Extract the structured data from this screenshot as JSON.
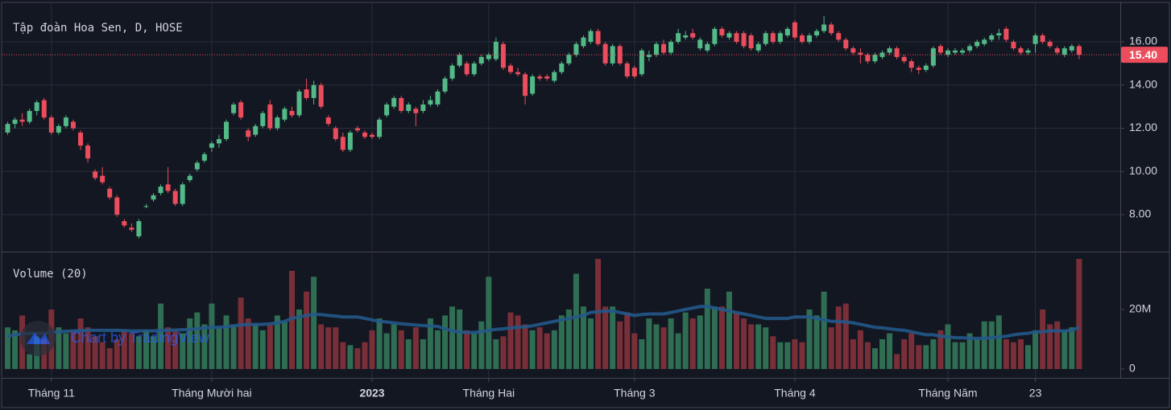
{
  "chart_data": {
    "type": "candlestick",
    "title": "Tập đoàn Hoa Sen, D, HOSE",
    "volume_title": "Volume (20)",
    "watermark": "Chart by TradingView",
    "up_color": "#53b987",
    "down_color": "#eb4d5c",
    "volume_up_color": "#2f6e52",
    "volume_down_color": "#7a2f38",
    "ma_color": "#24588a",
    "ylim": [
      6.29,
      17.75
    ],
    "yticks": [
      {
        "value": 8,
        "label": "8.00"
      },
      {
        "value": 10,
        "label": "10.00"
      },
      {
        "value": 12,
        "label": "12.00"
      },
      {
        "value": 14,
        "label": "14.00"
      },
      {
        "value": 16,
        "label": "16.00"
      }
    ],
    "last_price": {
      "value": 15.4,
      "label": "15.40"
    },
    "y2lim": [
      0,
      38.9
    ],
    "y2ticks": [
      0,
      {
        "value": 20,
        "label": "20M"
      }
    ],
    "grid": true,
    "categories": [
      null,
      null,
      null,
      null,
      null,
      null,
      "Tháng 11",
      null,
      null,
      null,
      null,
      null,
      null,
      null,
      null,
      null,
      null,
      null,
      null,
      null,
      null,
      null,
      null,
      null,
      null,
      null,
      null,
      null,
      "Tháng Mười hai",
      null,
      null,
      null,
      null,
      null,
      null,
      null,
      null,
      null,
      null,
      null,
      null,
      null,
      null,
      null,
      null,
      null,
      null,
      null,
      null,
      null,
      "2023",
      null,
      null,
      null,
      null,
      null,
      null,
      null,
      null,
      null,
      null,
      null,
      null,
      null,
      null,
      null,
      "Tháng Hai",
      null,
      null,
      null,
      null,
      null,
      null,
      null,
      null,
      null,
      null,
      null,
      null,
      null,
      null,
      null,
      null,
      null,
      null,
      null,
      "Tháng 3",
      null,
      null,
      null,
      null,
      null,
      null,
      null,
      null,
      null,
      null,
      null,
      null,
      null,
      null,
      null,
      null,
      null,
      null,
      null,
      null,
      null,
      "Tháng 4",
      null,
      null,
      null,
      null,
      null,
      null,
      null,
      null,
      null,
      null,
      null,
      null,
      null,
      null,
      null,
      null,
      null,
      null,
      null,
      null,
      "Tháng Năm",
      null,
      null,
      null,
      null,
      null,
      null,
      null,
      null,
      null,
      null,
      null,
      "23",
      null,
      null,
      null,
      null,
      null,
      null
    ],
    "ohlc": [
      [
        11.8,
        12.3,
        11.7,
        12.2
      ],
      [
        12.2,
        12.5,
        12.0,
        12.4
      ],
      [
        12.4,
        12.7,
        12.1,
        12.3
      ],
      [
        12.3,
        12.9,
        12.2,
        12.8
      ],
      [
        12.8,
        13.3,
        12.6,
        13.2
      ],
      [
        13.3,
        13.4,
        12.4,
        12.5
      ],
      [
        12.5,
        12.6,
        11.7,
        11.8
      ],
      [
        11.8,
        12.2,
        11.7,
        12.1
      ],
      [
        12.1,
        12.6,
        12.0,
        12.5
      ],
      [
        12.3,
        12.4,
        11.9,
        12.0
      ],
      [
        11.8,
        11.9,
        11.0,
        11.2
      ],
      [
        11.2,
        11.3,
        10.4,
        10.6
      ],
      [
        10.0,
        10.1,
        9.6,
        9.7
      ],
      [
        9.8,
        10.2,
        9.4,
        9.5
      ],
      [
        9.2,
        9.3,
        8.7,
        8.8
      ],
      [
        8.8,
        8.9,
        7.9,
        8.0
      ],
      [
        7.7,
        7.8,
        7.4,
        7.5
      ],
      [
        7.4,
        7.6,
        7.2,
        7.3
      ],
      [
        7.0,
        7.8,
        6.9,
        7.7
      ],
      [
        8.4,
        8.5,
        8.3,
        8.4
      ],
      [
        8.7,
        9.0,
        8.6,
        8.9
      ],
      [
        9.0,
        9.4,
        8.9,
        9.3
      ],
      [
        9.4,
        10.2,
        9.0,
        9.1
      ],
      [
        9.1,
        9.2,
        8.4,
        8.5
      ],
      [
        8.5,
        9.5,
        8.4,
        9.4
      ],
      [
        9.6,
        9.9,
        9.5,
        9.8
      ],
      [
        10.1,
        10.5,
        10.0,
        10.4
      ],
      [
        10.5,
        10.9,
        10.4,
        10.8
      ],
      [
        11.1,
        11.4,
        10.9,
        11.3
      ],
      [
        11.3,
        11.7,
        11.1,
        11.5
      ],
      [
        11.5,
        12.4,
        11.4,
        12.3
      ],
      [
        12.7,
        13.2,
        12.6,
        13.1
      ],
      [
        13.2,
        13.3,
        12.4,
        12.5
      ],
      [
        11.9,
        12.0,
        11.4,
        11.6
      ],
      [
        11.7,
        12.2,
        11.6,
        12.1
      ],
      [
        12.1,
        12.8,
        12.0,
        12.7
      ],
      [
        13.1,
        13.3,
        11.9,
        12.0
      ],
      [
        12.0,
        12.6,
        11.9,
        12.5
      ],
      [
        12.4,
        13.0,
        12.3,
        12.9
      ],
      [
        12.8,
        13.0,
        12.5,
        12.6
      ],
      [
        12.6,
        13.8,
        12.5,
        13.7
      ],
      [
        13.8,
        14.3,
        13.3,
        13.4
      ],
      [
        13.4,
        14.2,
        13.1,
        14.0
      ],
      [
        14.0,
        14.1,
        12.9,
        13.0
      ],
      [
        12.5,
        12.6,
        12.1,
        12.2
      ],
      [
        12.0,
        12.1,
        11.4,
        11.5
      ],
      [
        11.6,
        11.8,
        10.9,
        11.0
      ],
      [
        11.0,
        11.9,
        10.9,
        11.8
      ],
      [
        12.0,
        12.1,
        11.8,
        11.9
      ],
      [
        11.8,
        11.9,
        11.5,
        11.6
      ],
      [
        11.7,
        11.8,
        11.5,
        11.6
      ],
      [
        11.6,
        12.5,
        11.5,
        12.4
      ],
      [
        12.6,
        13.2,
        12.5,
        13.1
      ],
      [
        13.0,
        13.5,
        12.9,
        13.4
      ],
      [
        13.4,
        13.5,
        12.7,
        12.8
      ],
      [
        12.8,
        13.2,
        12.7,
        13.1
      ],
      [
        12.9,
        13.0,
        12.1,
        12.7
      ],
      [
        12.8,
        13.3,
        12.7,
        13.1
      ],
      [
        13.1,
        13.5,
        13.0,
        13.3
      ],
      [
        13.1,
        13.8,
        13.0,
        13.7
      ],
      [
        13.7,
        14.4,
        13.6,
        14.3
      ],
      [
        14.3,
        15.0,
        14.2,
        14.9
      ],
      [
        14.9,
        15.5,
        14.8,
        15.4
      ],
      [
        15.0,
        15.1,
        14.4,
        14.5
      ],
      [
        14.5,
        15.1,
        14.4,
        15.0
      ],
      [
        15.0,
        15.4,
        14.9,
        15.3
      ],
      [
        15.2,
        15.5,
        15.1,
        15.4
      ],
      [
        15.2,
        16.2,
        15.1,
        16.0
      ],
      [
        15.9,
        16.0,
        14.7,
        14.8
      ],
      [
        14.9,
        15.0,
        14.5,
        14.6
      ],
      [
        14.6,
        14.8,
        14.4,
        14.5
      ],
      [
        14.5,
        14.6,
        13.1,
        13.5
      ],
      [
        13.6,
        14.5,
        13.5,
        14.4
      ],
      [
        14.4,
        14.5,
        14.2,
        14.3
      ],
      [
        14.4,
        14.5,
        14.2,
        14.3
      ],
      [
        14.2,
        14.7,
        14.1,
        14.6
      ],
      [
        14.6,
        15.1,
        14.5,
        15.0
      ],
      [
        15.0,
        15.5,
        14.9,
        15.4
      ],
      [
        15.4,
        16.0,
        15.3,
        15.9
      ],
      [
        15.8,
        16.3,
        15.7,
        16.2
      ],
      [
        16.0,
        16.6,
        15.9,
        16.5
      ],
      [
        16.5,
        16.6,
        15.8,
        15.9
      ],
      [
        15.9,
        16.0,
        14.9,
        15.0
      ],
      [
        15.0,
        15.9,
        14.9,
        15.8
      ],
      [
        15.8,
        15.9,
        14.9,
        15.0
      ],
      [
        15.0,
        15.1,
        14.3,
        14.4
      ],
      [
        14.8,
        14.9,
        14.3,
        14.4
      ],
      [
        14.5,
        15.7,
        14.4,
        15.6
      ],
      [
        15.3,
        15.6,
        15.1,
        15.4
      ],
      [
        15.4,
        16.0,
        15.3,
        15.9
      ],
      [
        15.9,
        16.1,
        15.4,
        15.5
      ],
      [
        15.5,
        16.1,
        15.4,
        16.0
      ],
      [
        16.0,
        16.6,
        15.9,
        16.4
      ],
      [
        16.2,
        16.5,
        16.1,
        16.3
      ],
      [
        16.4,
        16.6,
        16.1,
        16.2
      ],
      [
        15.7,
        16.2,
        15.6,
        16.1
      ],
      [
        15.6,
        16.0,
        15.5,
        15.9
      ],
      [
        15.9,
        16.7,
        15.8,
        16.6
      ],
      [
        16.6,
        16.7,
        16.2,
        16.3
      ],
      [
        16.2,
        16.5,
        16.1,
        16.4
      ],
      [
        16.4,
        16.5,
        15.9,
        16.0
      ],
      [
        16.4,
        16.5,
        15.7,
        15.8
      ],
      [
        16.3,
        16.4,
        15.6,
        15.7
      ],
      [
        15.6,
        16.0,
        15.5,
        15.9
      ],
      [
        15.9,
        16.5,
        15.8,
        16.4
      ],
      [
        16.4,
        16.5,
        15.9,
        16.0
      ],
      [
        16.0,
        16.5,
        15.9,
        16.4
      ],
      [
        16.3,
        16.7,
        16.2,
        16.6
      ],
      [
        16.9,
        17.0,
        16.1,
        16.2
      ],
      [
        16.3,
        16.4,
        15.9,
        16.0
      ],
      [
        16.0,
        16.4,
        15.9,
        16.3
      ],
      [
        16.3,
        16.6,
        16.2,
        16.5
      ],
      [
        16.5,
        17.2,
        16.4,
        16.8
      ],
      [
        16.8,
        16.9,
        16.3,
        16.4
      ],
      [
        16.4,
        16.5,
        16.0,
        16.1
      ],
      [
        16.1,
        16.2,
        15.6,
        15.7
      ],
      [
        15.7,
        15.8,
        15.4,
        15.5
      ],
      [
        15.5,
        15.7,
        15.0,
        15.4
      ],
      [
        15.4,
        15.5,
        15.0,
        15.1
      ],
      [
        15.1,
        15.5,
        15.0,
        15.4
      ],
      [
        15.3,
        15.6,
        15.2,
        15.5
      ],
      [
        15.5,
        15.8,
        15.4,
        15.7
      ],
      [
        15.7,
        15.8,
        15.2,
        15.3
      ],
      [
        15.3,
        15.4,
        15.0,
        15.1
      ],
      [
        15.1,
        15.2,
        14.6,
        14.8
      ],
      [
        14.8,
        14.9,
        14.5,
        14.7
      ],
      [
        14.7,
        15.0,
        14.6,
        14.9
      ],
      [
        14.9,
        15.8,
        14.8,
        15.7
      ],
      [
        15.8,
        15.9,
        15.4,
        15.5
      ],
      [
        15.4,
        15.7,
        15.3,
        15.6
      ],
      [
        15.5,
        15.7,
        15.4,
        15.6
      ],
      [
        15.5,
        15.7,
        15.4,
        15.6
      ],
      [
        15.6,
        15.9,
        15.5,
        15.8
      ],
      [
        15.8,
        16.1,
        15.7,
        16.0
      ],
      [
        15.9,
        16.2,
        15.8,
        16.1
      ],
      [
        16.1,
        16.4,
        16.0,
        16.3
      ],
      [
        16.3,
        16.6,
        16.1,
        16.4
      ],
      [
        16.6,
        16.7,
        16.0,
        16.1
      ],
      [
        16.0,
        16.1,
        15.6,
        15.7
      ],
      [
        15.7,
        15.8,
        15.4,
        15.5
      ],
      [
        15.5,
        15.7,
        15.4,
        15.6
      ],
      [
        15.9,
        16.4,
        15.5,
        16.3
      ],
      [
        16.3,
        16.4,
        15.9,
        16.0
      ],
      [
        16.0,
        16.1,
        15.7,
        15.8
      ],
      [
        15.7,
        15.8,
        15.4,
        15.5
      ],
      [
        15.4,
        15.8,
        15.3,
        15.7
      ],
      [
        15.6,
        15.9,
        15.5,
        15.8
      ],
      [
        15.8,
        15.9,
        15.2,
        15.4
      ]
    ],
    "volume": [
      14,
      13,
      18,
      5,
      11,
      10,
      20,
      14,
      12,
      13,
      17,
      14,
      11,
      9,
      7,
      10,
      13,
      12,
      11,
      13,
      11,
      22,
      14,
      13,
      12,
      17,
      19,
      15,
      22,
      14,
      18,
      15,
      24,
      17,
      15,
      13,
      15,
      18,
      16,
      33,
      20,
      26,
      31,
      15,
      14,
      14,
      9,
      8,
      7,
      9,
      13,
      17,
      12,
      15,
      13,
      10,
      14,
      10,
      17,
      13,
      18,
      21,
      20,
      13,
      12,
      16,
      31,
      10,
      11,
      19,
      18,
      15,
      13,
      14,
      12,
      13,
      18,
      20,
      32,
      21,
      17,
      37,
      21,
      21,
      16,
      19,
      12,
      10,
      17,
      15,
      14,
      17,
      12,
      19,
      17,
      18,
      27,
      21,
      21,
      26,
      19,
      17,
      15,
      15,
      14,
      11,
      9,
      9,
      10,
      9,
      20,
      18,
      26,
      14,
      21,
      22,
      10,
      13,
      9,
      7,
      10,
      12,
      5,
      10,
      12,
      8,
      8,
      10,
      13,
      15,
      9,
      9,
      12,
      10,
      16,
      16,
      18,
      10,
      9,
      10,
      8,
      13,
      20,
      15,
      16,
      13,
      14,
      37
    ],
    "volume_ma": [
      11,
      11.5,
      11.8,
      12,
      12,
      12,
      12.3,
      12.5,
      12.7,
      12.8,
      12.9,
      13,
      13,
      13,
      13,
      13,
      12.9,
      12.8,
      12.8,
      12.8,
      12.8,
      13,
      13,
      13.1,
      13.2,
      13.3,
      13.5,
      13.8,
      14,
      14,
      14.2,
      14.5,
      14.8,
      15,
      15,
      15,
      15.2,
      15.5,
      16,
      17,
      17.5,
      18,
      18.3,
      18.3,
      18,
      17.8,
      17.5,
      17.5,
      17.5,
      17,
      16.5,
      16,
      15.8,
      15.5,
      15.2,
      15,
      14.8,
      14.6,
      14.5,
      14.3,
      13.5,
      12.8,
      12.5,
      12.3,
      12.3,
      12.5,
      13,
      13.3,
      13.5,
      13.8,
      14,
      14.2,
      14.5,
      15,
      15.5,
      16,
      16.5,
      17,
      17.5,
      18,
      19,
      19.2,
      19.5,
      19.5,
      19,
      18.5,
      18,
      18.3,
      18.5,
      18.5,
      18.5,
      19,
      19.5,
      20,
      20.5,
      21,
      21,
      20.5,
      20,
      19.5,
      19,
      18.5,
      18,
      17.5,
      17,
      17,
      17,
      17,
      17.5,
      17.5,
      17.5,
      17,
      16.5,
      16,
      16,
      15.8,
      15.5,
      15,
      14.5,
      14,
      13.8,
      13.5,
      13.2,
      13,
      12.5,
      12,
      11.5,
      11.5,
      11,
      10.8,
      10.5,
      10.5,
      10.3,
      10.3,
      10.3,
      10.5,
      10.8,
      11,
      11.5,
      11.8,
      12,
      12.5,
      12.5,
      12.8,
      12.8,
      12.8,
      13,
      14
    ]
  }
}
